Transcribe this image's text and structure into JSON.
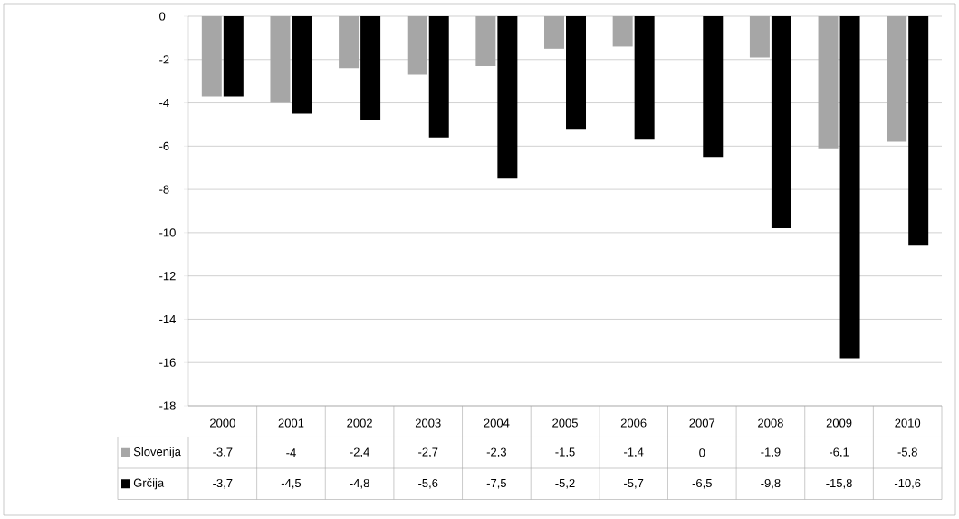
{
  "chart_data": {
    "type": "bar",
    "categories": [
      "2000",
      "2001",
      "2002",
      "2003",
      "2004",
      "2005",
      "2006",
      "2007",
      "2008",
      "2009",
      "2010"
    ],
    "series": [
      {
        "name": "Slovenija",
        "color": "#a6a6a6",
        "values": [
          -3.7,
          -4,
          -2.4,
          -2.7,
          -2.3,
          -1.5,
          -1.4,
          0,
          -1.9,
          -6.1,
          -5.8
        ],
        "value_labels": [
          "-3,7",
          "-4",
          "-2,4",
          "-2,7",
          "-2,3",
          "-1,5",
          "-1,4",
          "0",
          "-1,9",
          "-6,1",
          "-5,8"
        ]
      },
      {
        "name": "Grčija",
        "color": "#000000",
        "values": [
          -3.7,
          -4.5,
          -4.8,
          -5.6,
          -7.5,
          -5.2,
          -5.7,
          -6.5,
          -9.8,
          -15.8,
          -10.6
        ],
        "value_labels": [
          "-3,7",
          "-4,5",
          "-4,8",
          "-5,6",
          "-7,5",
          "-5,2",
          "-5,7",
          "-6,5",
          "-9,8",
          "-15,8",
          "-10,6"
        ]
      }
    ],
    "ylim": [
      -18,
      0
    ],
    "yticks": [
      0,
      -2,
      -4,
      -6,
      -8,
      -10,
      -12,
      -14,
      -16,
      -18
    ],
    "grid": "y",
    "legend": "bottom"
  }
}
